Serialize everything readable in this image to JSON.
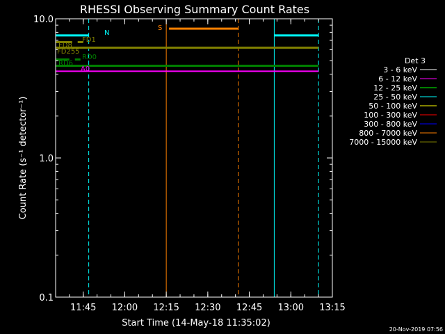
{
  "chart_data": {
    "type": "line",
    "title": "RHESSI Observing Summary Count Rates",
    "xlabel": "Start Time (14-May-18 11:35:02)",
    "ylabel": "Count Rate (s⁻¹ detector⁻¹)",
    "yscale": "log",
    "xlim": [
      "11:35:02",
      "13:15"
    ],
    "ylim": [
      0.1,
      10.0
    ],
    "x_ticks": [
      "11:45",
      "12:00",
      "12:15",
      "12:30",
      "12:45",
      "13:00",
      "13:15"
    ],
    "y_ticks": [
      "0.1",
      "1.0",
      "10.0"
    ],
    "legend_title": "Det 3",
    "legend_position": "right",
    "series": [
      {
        "name": "3 - 6 keV",
        "color": "#ffffff",
        "segments": []
      },
      {
        "name": "6 - 12 keV",
        "color": "#ff00ff",
        "segments": [
          {
            "x": [
              "11:35:02",
              "13:10"
            ],
            "y": 4.2
          }
        ]
      },
      {
        "name": "12 - 25 keV",
        "color": "#00ff00",
        "segments": []
      },
      {
        "name": "25 - 50 keV",
        "color": "#00ffff",
        "segments": []
      },
      {
        "name": "50 - 100 keV",
        "color": "#ffff00",
        "segments": []
      },
      {
        "name": "100 - 300 keV",
        "color": "#ff0000",
        "segments": []
      },
      {
        "name": "300 - 800 keV",
        "color": "#0000ff",
        "segments": []
      },
      {
        "name": "800 - 7000 keV",
        "color": "#ff8000",
        "segments": []
      },
      {
        "name": "7000 - 15000 keV",
        "color": "#808000",
        "segments": []
      }
    ],
    "flag_bars": [
      {
        "label": "N",
        "color": "#00ffff",
        "y": 7.6,
        "segments": [
          [
            "11:35:02",
            "11:47"
          ],
          [
            "12:54",
            "13:10"
          ]
        ]
      },
      {
        "label": "S",
        "color": "#ff8000",
        "y": 8.5,
        "segments": [
          [
            "12:16",
            "12:41"
          ]
        ]
      },
      {
        "label": "FD1",
        "color": "#808000",
        "y": 6.8,
        "segments": [
          [
            "11:35:02",
            "11:41"
          ],
          [
            "11:43",
            "11:45"
          ]
        ]
      },
      {
        "label": "FD8",
        "color": "#808000",
        "y": 6.2,
        "segments": [
          [
            "11:35:02",
            "13:10"
          ]
        ]
      },
      {
        "label": "FD255",
        "color": "#808000",
        "y": 5.6,
        "segments": []
      },
      {
        "label": "RD0",
        "color": "#008000",
        "y": 5.1,
        "segments": [
          [
            "11:35:02",
            "11:40"
          ],
          [
            "11:42",
            "11:44"
          ]
        ]
      },
      {
        "label": "RD6",
        "color": "#008000",
        "y": 4.6,
        "segments": [
          [
            "11:35:02",
            "13:10"
          ]
        ]
      },
      {
        "label": "A0",
        "color": "#ff00ff",
        "y": 4.2,
        "segments": []
      }
    ],
    "vlines": [
      {
        "x": "11:35:02",
        "color": "#00ffff",
        "style": "solid"
      },
      {
        "x": "11:47",
        "color": "#00ffff",
        "style": "dashed"
      },
      {
        "x": "12:15",
        "color": "#ff8000",
        "style": "solid"
      },
      {
        "x": "12:41",
        "color": "#ff8000",
        "style": "dashed"
      },
      {
        "x": "12:54",
        "color": "#00ffff",
        "style": "solid"
      },
      {
        "x": "13:10",
        "color": "#00ffff",
        "style": "dashed"
      }
    ],
    "timestamp": "20-Nov-2019 07:56"
  }
}
